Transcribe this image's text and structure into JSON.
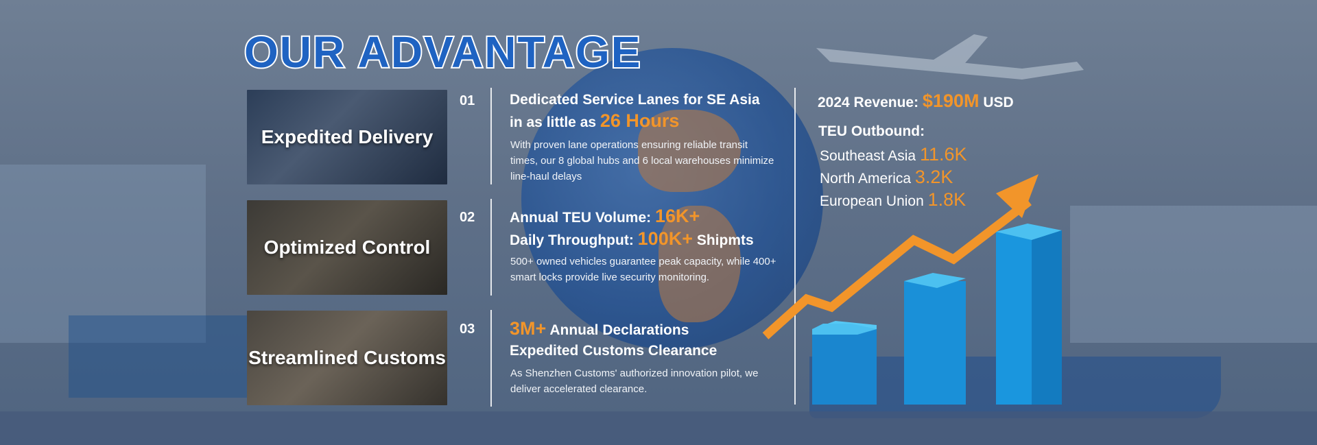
{
  "title": "OUR ADVANTAGE",
  "cards": [
    {
      "label": "Expedited Delivery"
    },
    {
      "label": "Optimized Control"
    },
    {
      "label": "Streamlined Customs"
    }
  ],
  "items": [
    {
      "num": "01",
      "line1": "Dedicated Service Lanes for SE Asia",
      "line2_pre": "in as little as ",
      "line2_value": "26 Hours",
      "desc": "With proven lane operations ensuring reliable transit times, our 8 global hubs and 6 local warehouses minimize line-haul delays"
    },
    {
      "num": "02",
      "line1_pre": "Annual TEU Volume: ",
      "line1_value": "16K+",
      "line2_pre": "Daily Throughput: ",
      "line2_value": "100K+",
      "line2_post": " Shipmts",
      "desc": "500+ owned vehicles guarantee peak capacity, while 400+ smart locks provide live security monitoring."
    },
    {
      "num": "03",
      "line1_value": "3M+",
      "line1_post": " Annual Declarations",
      "line2": "Expedited Customs Clearance",
      "desc": "As Shenzhen Customs' authorized innovation pilot, we deliver accelerated clearance."
    }
  ],
  "stats": {
    "revenue_label": "2024 Revenue: ",
    "revenue_value": "$190M",
    "revenue_unit": " USD",
    "teu_title": "TEU Outbound:",
    "teu": [
      {
        "region": "Southeast Asia ",
        "value": "11.6K"
      },
      {
        "region": "North America ",
        "value": "3.2K"
      },
      {
        "region": "European Union ",
        "value": "1.8K"
      }
    ]
  },
  "colors": {
    "accent": "#f2952a",
    "title_blue": "#1f63c2",
    "bar_blue": "#1fa3e6"
  }
}
